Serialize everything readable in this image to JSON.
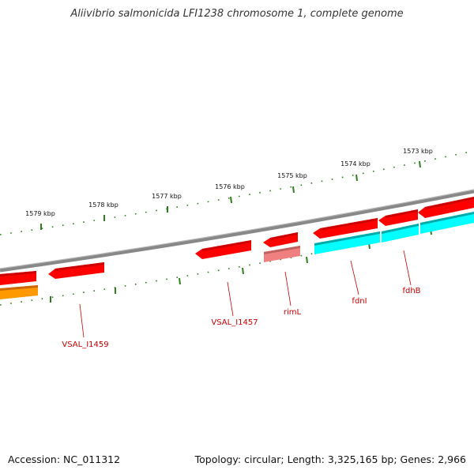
{
  "title": "Aliivibrio salmonicida LFI1238 chromosome 1, complete genome",
  "footer": {
    "accession": "Accession: NC_011312",
    "topology": "Topology: circular; Length: 3,325,165 bp; Genes: 2,966"
  },
  "colors": {
    "backbone": "#888888",
    "ticks": "#2e7d1f",
    "gene_red": "#ff0000",
    "gene_pink": "#f08080",
    "gene_cyan": "#00ffff",
    "gene_orange": "#ff9900",
    "label": "#cc0000"
  },
  "scale": {
    "unit": "kbp",
    "labels": [
      "1573 kbp",
      "1574 kbp",
      "1575 kbp",
      "1576 kbp",
      "1577 kbp",
      "1578 kbp",
      "1579 kbp"
    ]
  },
  "gene_labels": [
    "fdhB",
    "fdnI",
    "rimL",
    "VSAL_I1457",
    "VSAL_I1459"
  ]
}
